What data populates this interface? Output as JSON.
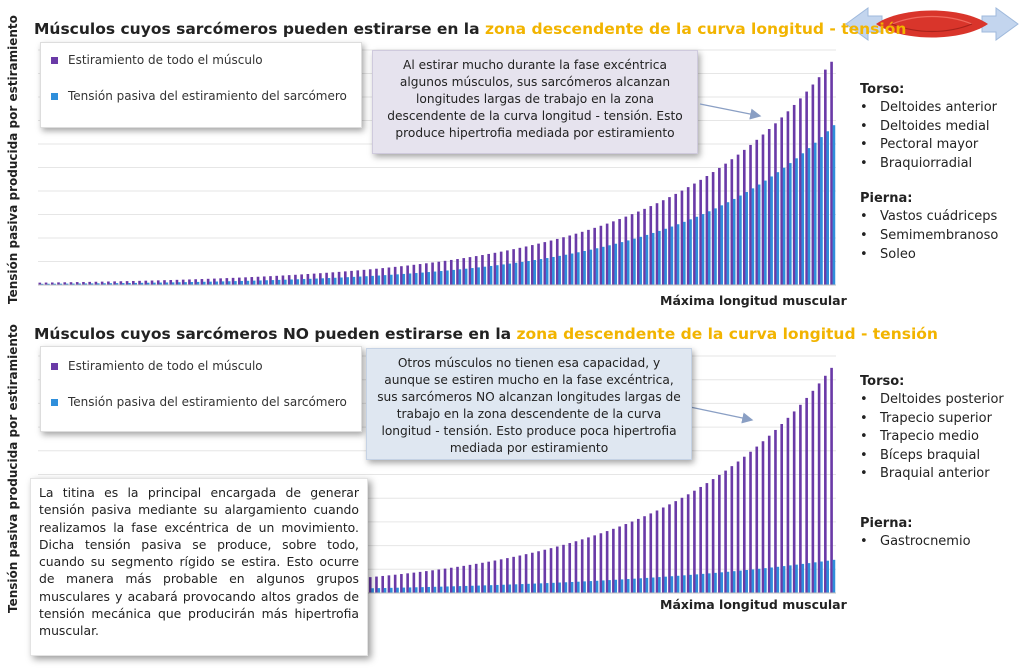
{
  "header_icon": {
    "name": "muscle-arrows-icon",
    "muscle_color": "#d9352b",
    "arrow_color": "#b7cde8"
  },
  "colors": {
    "muscle_stretch": "#6a3aa7",
    "passive_tension": "#2f8fdb",
    "highlight": "#f2b400"
  },
  "panel1": {
    "title_prefix": "Músculos cuyos sarcómeros pueden estirarse en la ",
    "title_highlight": "zona descendente de la curva longitud - tensión",
    "ylabel": "Tensión pasiva producida por estiramiento",
    "xlabel": "Máxima longitud muscular",
    "legend": [
      "Estiramiento de todo el músculo",
      "Tensión pasiva del estiramiento del sarcómero"
    ],
    "note": "Al estirar mucho durante la fase excéntrica algunos músculos, sus sarcómeros alcanzan longitudes largas de trabajo en la zona descendente de la curva longitud - tensión. Esto produce hipertrofia mediada por estiramiento",
    "groups": [
      {
        "heading": "Torso:",
        "items": [
          "Deltoides anterior",
          "Deltoides medial",
          "Pectoral mayor",
          "Braquiorradial"
        ]
      },
      {
        "heading": "Pierna:",
        "items": [
          "Vastos cuádriceps",
          "Semimembranoso",
          "Soleo"
        ]
      }
    ]
  },
  "panel2": {
    "title_prefix": "Músculos cuyos sarcómeros NO pueden estirarse en la ",
    "title_highlight": "zona descendente de la curva longitud - tensión",
    "ylabel": "Tensión pasiva producida por estiramiento",
    "xlabel": "Máxima longitud muscular",
    "legend": [
      "Estiramiento de todo el músculo",
      "Tensión pasiva del estiramiento del sarcómero"
    ],
    "note": "Otros músculos no tienen esa capacidad, y aunque se estiren mucho en la fase excéntrica, sus sarcómeros NO alcanzan longitudes largas de trabajo en la zona descendente de la curva longitud - tensión. Esto produce poca hipertrofia mediada por estiramiento",
    "groups": [
      {
        "heading": "Torso:",
        "items": [
          "Deltoides posterior",
          "Trapecio superior",
          "Trapecio medio",
          "Bíceps braquial",
          "Braquial anterior"
        ]
      },
      {
        "heading": "Pierna:",
        "items": [
          "Gastrocnemio"
        ]
      }
    ]
  },
  "titin_text": "La titina es la principal encargada de generar tensión pasiva mediante su alargamiento cuando realizamos la fase excéntrica de un movimiento. Dicha tensión pasiva se produce, sobre todo, cuando su segmento rígido se estira. Esto ocurre de manera más probable en algunos grupos musculares y acabará provocando altos grados de tensión mecánica que producirán más hipertrofia muscular.",
  "chart_data": [
    {
      "type": "bar",
      "title": "Músculos cuyos sarcómeros pueden estirarse en la zona descendente de la curva longitud - tensión",
      "xlabel": "Máxima longitud muscular",
      "ylabel": "Tensión pasiva producida por estiramiento",
      "ylim": [
        0,
        1
      ],
      "grid": true,
      "legend_position": "top-left",
      "n_bars": 128,
      "series": [
        {
          "name": "Estiramiento de todo el músculo",
          "color": "#6a3aa7",
          "curve": "exponential",
          "start": 0.01,
          "end": 0.95
        },
        {
          "name": "Tensión pasiva del estiramiento del sarcómero",
          "color": "#2f8fdb",
          "curve": "exponential",
          "start": 0.005,
          "end": 0.68
        }
      ]
    },
    {
      "type": "bar",
      "title": "Músculos cuyos sarcómeros NO pueden estirarse en la zona descendente de la curva longitud - tensión",
      "xlabel": "Máxima longitud muscular",
      "ylabel": "Tensión pasiva producida por estiramiento",
      "ylim": [
        0,
        1
      ],
      "grid": true,
      "legend_position": "top-left",
      "n_bars": 128,
      "series": [
        {
          "name": "Estiramiento de todo el músculo",
          "color": "#6a3aa7",
          "curve": "exponential",
          "start": 0.01,
          "end": 0.95
        },
        {
          "name": "Tensión pasiva del estiramiento del sarcómero",
          "color": "#2f8fdb",
          "curve": "exponential",
          "start": 0.005,
          "end": 0.14
        }
      ]
    }
  ]
}
